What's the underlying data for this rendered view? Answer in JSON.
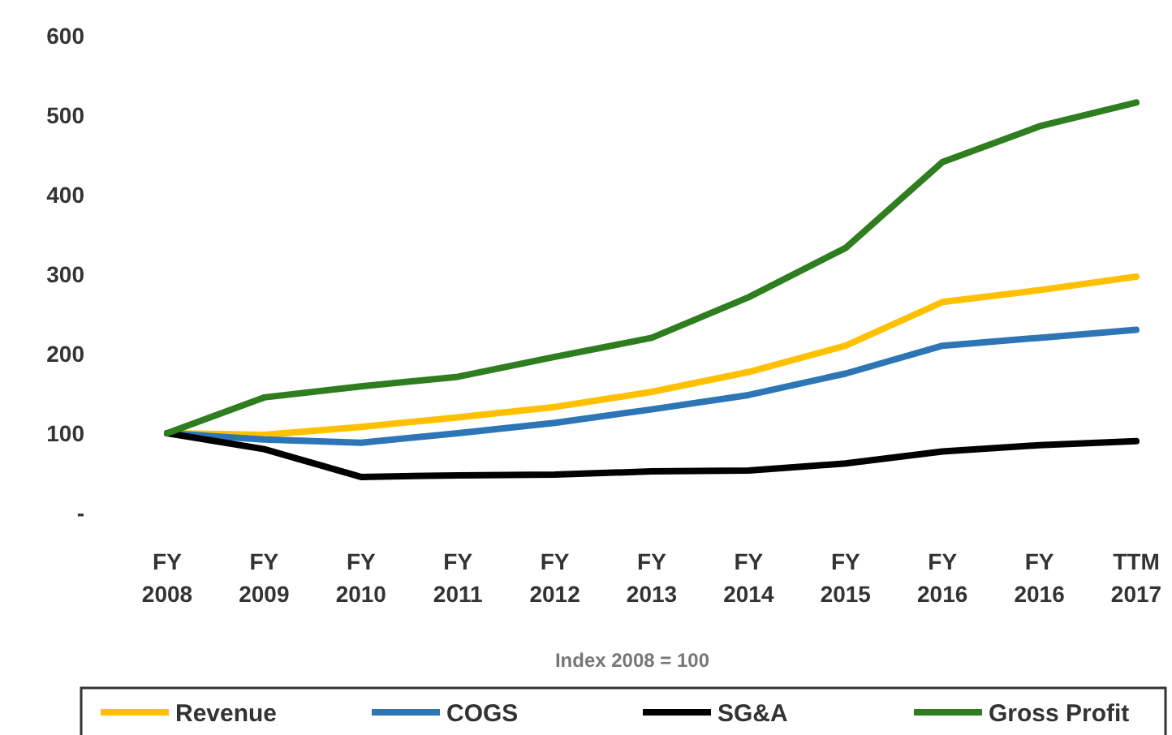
{
  "chart_data": {
    "type": "line",
    "xlabel": "Index 2008 = 100",
    "categories": [
      "FY 2008",
      "FY 2009",
      "FY 2010",
      "FY 2011",
      "FY 2012",
      "FY 2013",
      "FY 2014",
      "FY 2015",
      "FY 2016",
      "FY 2016",
      "TTM 2017"
    ],
    "series": [
      {
        "name": "Revenue",
        "color": "#ffc000",
        "values": [
          100,
          98,
          108,
          120,
          133,
          152,
          177,
          210,
          265,
          280,
          297
        ]
      },
      {
        "name": "COGS",
        "color": "#2e75b6",
        "values": [
          100,
          92,
          88,
          100,
          113,
          130,
          148,
          175,
          210,
          220,
          230
        ]
      },
      {
        "name": "SG&A",
        "color": "#000000",
        "values": [
          100,
          80,
          45,
          47,
          48,
          52,
          53,
          62,
          77,
          85,
          90
        ]
      },
      {
        "name": "Gross Profit",
        "color": "#2e7d1e",
        "values": [
          100,
          145,
          159,
          171,
          196,
          220,
          271,
          333,
          441,
          486,
          516
        ]
      }
    ],
    "ylim": [
      0,
      600
    ],
    "yticks": [
      {
        "value": 0,
        "label": "-"
      },
      100,
      200,
      300,
      400,
      500,
      600
    ],
    "grid": false,
    "legend": "bottom",
    "marker": "none",
    "line_style": "solid"
  }
}
